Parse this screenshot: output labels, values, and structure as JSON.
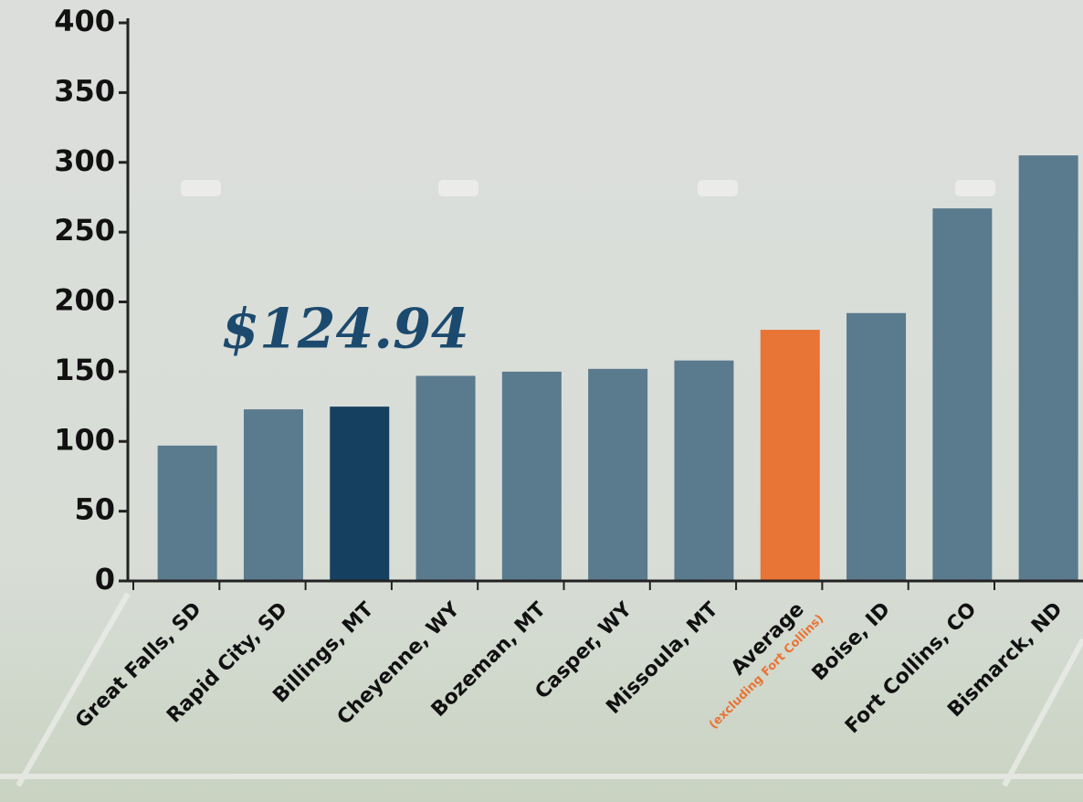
{
  "chart_data": {
    "type": "bar",
    "categories": [
      "Great Falls, SD",
      "Rapid City, SD",
      "Billings, MT",
      "Cheyenne, WY",
      "Bozeman, MT",
      "Casper, WY",
      "Missoula, MT",
      "Average",
      "Boise, ID",
      "Fort Collins, CO",
      "Bismarck, ND"
    ],
    "category_note": "(excluding Fort Collins)",
    "values": [
      97,
      123,
      124.94,
      147,
      150,
      152,
      158,
      180,
      192,
      267,
      305
    ],
    "colors": [
      "#5a7a8e",
      "#5a7a8e",
      "#16405f",
      "#5a7a8e",
      "#5a7a8e",
      "#5a7a8e",
      "#5a7a8e",
      "#e87436",
      "#5a7a8e",
      "#5a7a8e",
      "#5a7a8e"
    ],
    "label_colors": [
      "#111111",
      "#111111",
      "#111111",
      "#111111",
      "#111111",
      "#111111",
      "#111111",
      "#e87436",
      "#111111",
      "#111111",
      "#111111"
    ],
    "annotation": "$124.94",
    "ylim": [
      0,
      400
    ],
    "yticks": [
      0,
      50,
      100,
      150,
      200,
      250,
      300,
      350,
      400
    ],
    "grid": false
  }
}
